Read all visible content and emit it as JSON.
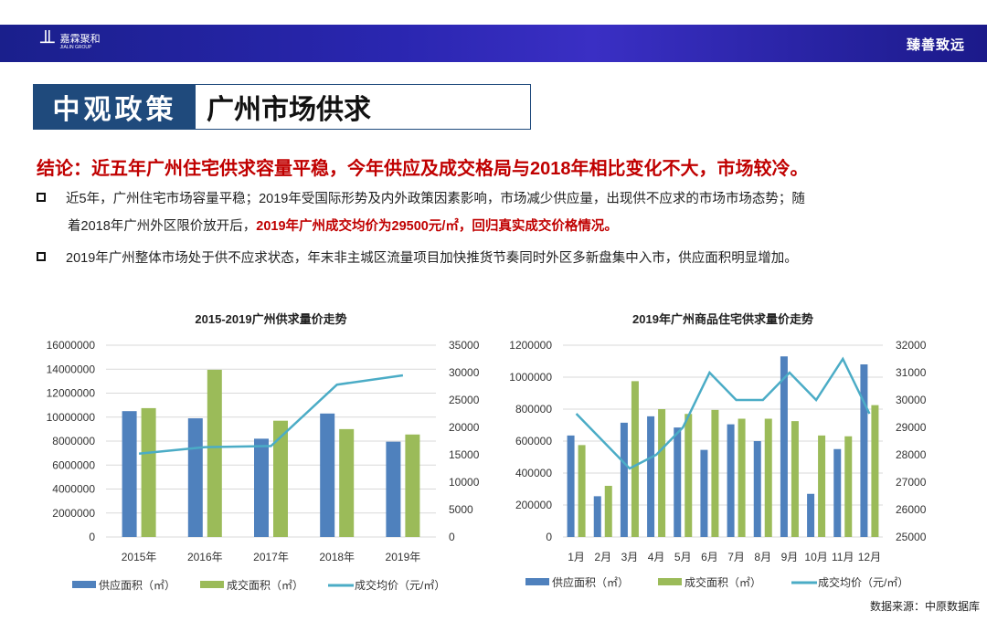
{
  "header": {
    "logo_cn": "嘉霖聚和",
    "logo_en": "JIALIN GROUP",
    "slogan": "臻善致远"
  },
  "title": {
    "category": "中观政策",
    "topic": "广州市场供求"
  },
  "conclusion": "结论：近五年广州住宅供求容量平稳，今年供应及成交格局与2018年相比变化不大，市场较冷。",
  "bullets": [
    {
      "line1": "近5年，广州住宅市场容量平稳；2019年受国际形势及内外政策因素影响，市场减少供应量，出现供不应求的市场市场态势；随",
      "line2_pre": "着2018年广州外区限价放开后，",
      "line2_red": "2019年广州成交均价为29500元/㎡，回归真实成交价格情况。"
    },
    {
      "text": "2019年广州整体市场处于供不应求状态，年末非主城区流量项目加快推货节奏同时外区多新盘集中入市，供应面积明显增加。"
    }
  ],
  "source": "数据来源：中原数据库",
  "colors": {
    "supply": "#4f81bd",
    "sales": "#9bbb59",
    "price": "#4bacc6"
  },
  "chart_data": [
    {
      "type": "bar",
      "title": "2015-2019广州供求量价走势",
      "categories": [
        "2015年",
        "2016年",
        "2017年",
        "2018年",
        "2019年"
      ],
      "series": [
        {
          "name": "供应面积（㎡）",
          "type": "bar",
          "axis": "left",
          "values": [
            10500000,
            9900000,
            8200000,
            10300000,
            7950000
          ]
        },
        {
          "name": "成交面积（㎡）",
          "type": "bar",
          "axis": "left",
          "values": [
            10750000,
            13950000,
            9700000,
            9000000,
            8550000
          ]
        },
        {
          "name": "成交均价（元/㎡）",
          "type": "line",
          "axis": "right",
          "values": [
            15200,
            16400,
            16600,
            27800,
            29500
          ]
        }
      ],
      "ylim": [
        0,
        16000000
      ],
      "yticks": [
        "0",
        "2000000",
        "4000000",
        "6000000",
        "8000000",
        "10000000",
        "12000000",
        "14000000",
        "16000000"
      ],
      "y2lim": [
        0,
        35000
      ],
      "y2ticks": [
        "0",
        "5000",
        "10000",
        "15000",
        "20000",
        "25000",
        "30000",
        "35000"
      ],
      "legend": "bottom",
      "grid": true
    },
    {
      "type": "bar",
      "title": "2019年广州商品住宅供求量价走势",
      "categories": [
        "1月",
        "2月",
        "3月",
        "4月",
        "5月",
        "6月",
        "7月",
        "8月",
        "9月",
        "10月",
        "11月",
        "12月"
      ],
      "series": [
        {
          "name": "供应面积（㎡）",
          "type": "bar",
          "axis": "left",
          "values": [
            635000,
            255000,
            715000,
            755000,
            685000,
            545000,
            705000,
            600000,
            1130000,
            270000,
            550000,
            1080000
          ]
        },
        {
          "name": "成交面积（㎡）",
          "type": "bar",
          "axis": "left",
          "values": [
            575000,
            320000,
            975000,
            800000,
            770000,
            795000,
            740000,
            740000,
            725000,
            635000,
            630000,
            825000
          ]
        },
        {
          "name": "成交均价（元/㎡）",
          "type": "line",
          "axis": "right",
          "values": [
            29500,
            28500,
            27500,
            28000,
            29000,
            31000,
            30000,
            30000,
            31000,
            30000,
            31500,
            29500
          ]
        }
      ],
      "ylim": [
        0,
        1200000
      ],
      "yticks": [
        "0",
        "200000",
        "400000",
        "600000",
        "800000",
        "1000000",
        "1200000"
      ],
      "y2lim": [
        25000,
        32000
      ],
      "y2ticks": [
        "25000",
        "26000",
        "27000",
        "28000",
        "29000",
        "30000",
        "31000",
        "32000"
      ],
      "legend": "bottom",
      "grid": true
    }
  ]
}
